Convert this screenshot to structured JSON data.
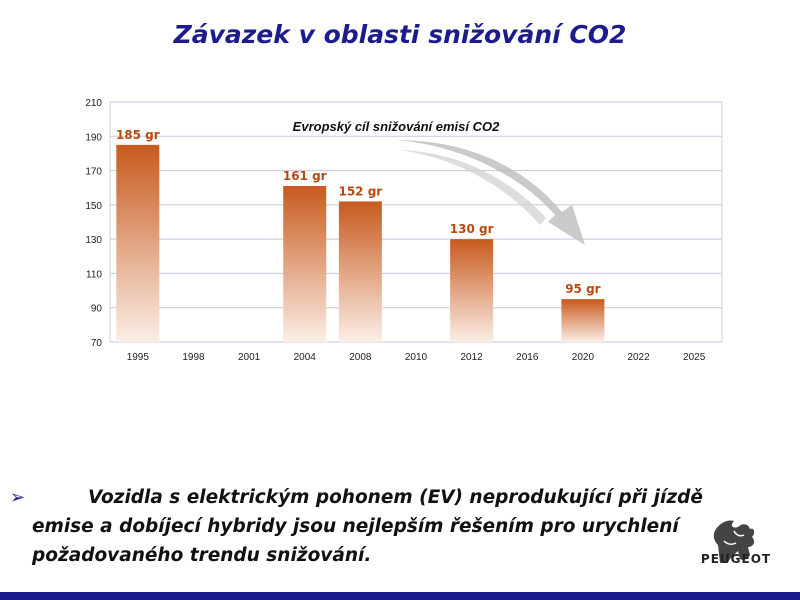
{
  "slide": {
    "title": "Závazek v oblasti snižování CO2"
  },
  "chart_data": {
    "type": "bar",
    "title": "Evropský cíl snižování emisí CO2",
    "categories": [
      "1995",
      "1998",
      "2001",
      "2004",
      "2008",
      "2010",
      "2012",
      "2016",
      "2020",
      "2022",
      "2025"
    ],
    "values": [
      185,
      null,
      null,
      161,
      152,
      null,
      130,
      null,
      95,
      null,
      null
    ],
    "data_labels": [
      "185 gr",
      "",
      "",
      "161 gr",
      "152 gr",
      "",
      "130 gr",
      "",
      "95 gr",
      "",
      ""
    ],
    "yticks": [
      "70",
      "90",
      "110",
      "130",
      "150",
      "170",
      "190",
      "210"
    ],
    "ylim": [
      70,
      210
    ],
    "grid": true,
    "legend": "none",
    "bar_color": "#c85a1e",
    "label_color": "#b84a10"
  },
  "bullet": {
    "marker": "➢",
    "line1": "Vozidla s elektrickým pohonem (EV) neprodukující při jízdě",
    "line2": "emise a dobíjecí hybridy jsou nejlepším řešením pro urychlení",
    "line3": "požadovaného trendu snižování."
  },
  "logo": {
    "text": "PEUGEOT",
    "icon": "lion-icon"
  },
  "colors": {
    "title": "#1c1c8c",
    "bar": "#1c1c8c"
  }
}
